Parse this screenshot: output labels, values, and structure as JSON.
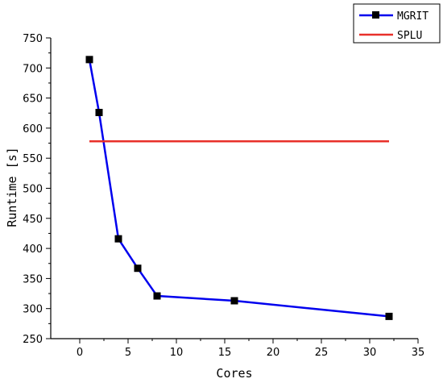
{
  "chart_data": {
    "type": "line",
    "xlabel": "Cores",
    "ylabel": "Runtime [s]",
    "xlim": [
      -3,
      35
    ],
    "ylim": [
      250,
      750
    ],
    "x_ticks": [
      0,
      5,
      10,
      15,
      20,
      25,
      30,
      35
    ],
    "y_ticks": [
      250,
      300,
      350,
      400,
      450,
      500,
      550,
      600,
      650,
      700,
      750
    ],
    "grid": false,
    "legend_position": "top-right",
    "series": [
      {
        "name": "MGRIT",
        "color": "#0000ee",
        "marker": "square",
        "x": [
          1,
          2,
          4,
          6,
          8,
          16,
          32
        ],
        "y": [
          714,
          626,
          416,
          367,
          321,
          313,
          287
        ]
      },
      {
        "name": "SPLU",
        "color": "#e8302a",
        "marker": "none",
        "x": [
          1,
          32
        ],
        "y": [
          578,
          578
        ]
      }
    ]
  }
}
